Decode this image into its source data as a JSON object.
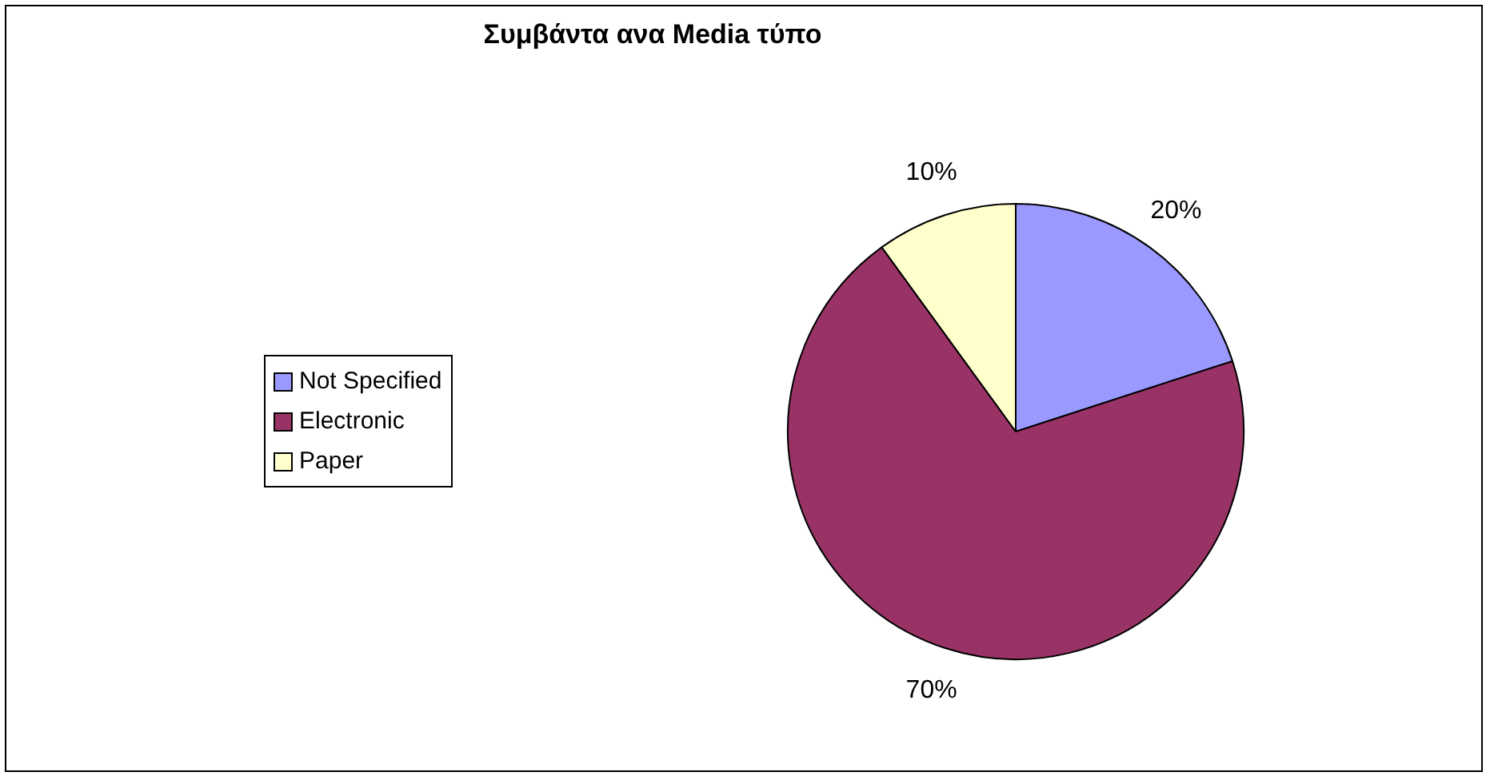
{
  "chart_data": {
    "type": "pie",
    "title": "Συμβάντα ανα Media τύπο",
    "categories": [
      "Not Specified",
      "Electronic",
      "Paper"
    ],
    "values": [
      20,
      70,
      10
    ],
    "colors": [
      "#9999ff",
      "#993366",
      "#ffffcc"
    ],
    "value_labels": [
      "20%",
      "70%",
      "10%"
    ],
    "legend": "left"
  }
}
